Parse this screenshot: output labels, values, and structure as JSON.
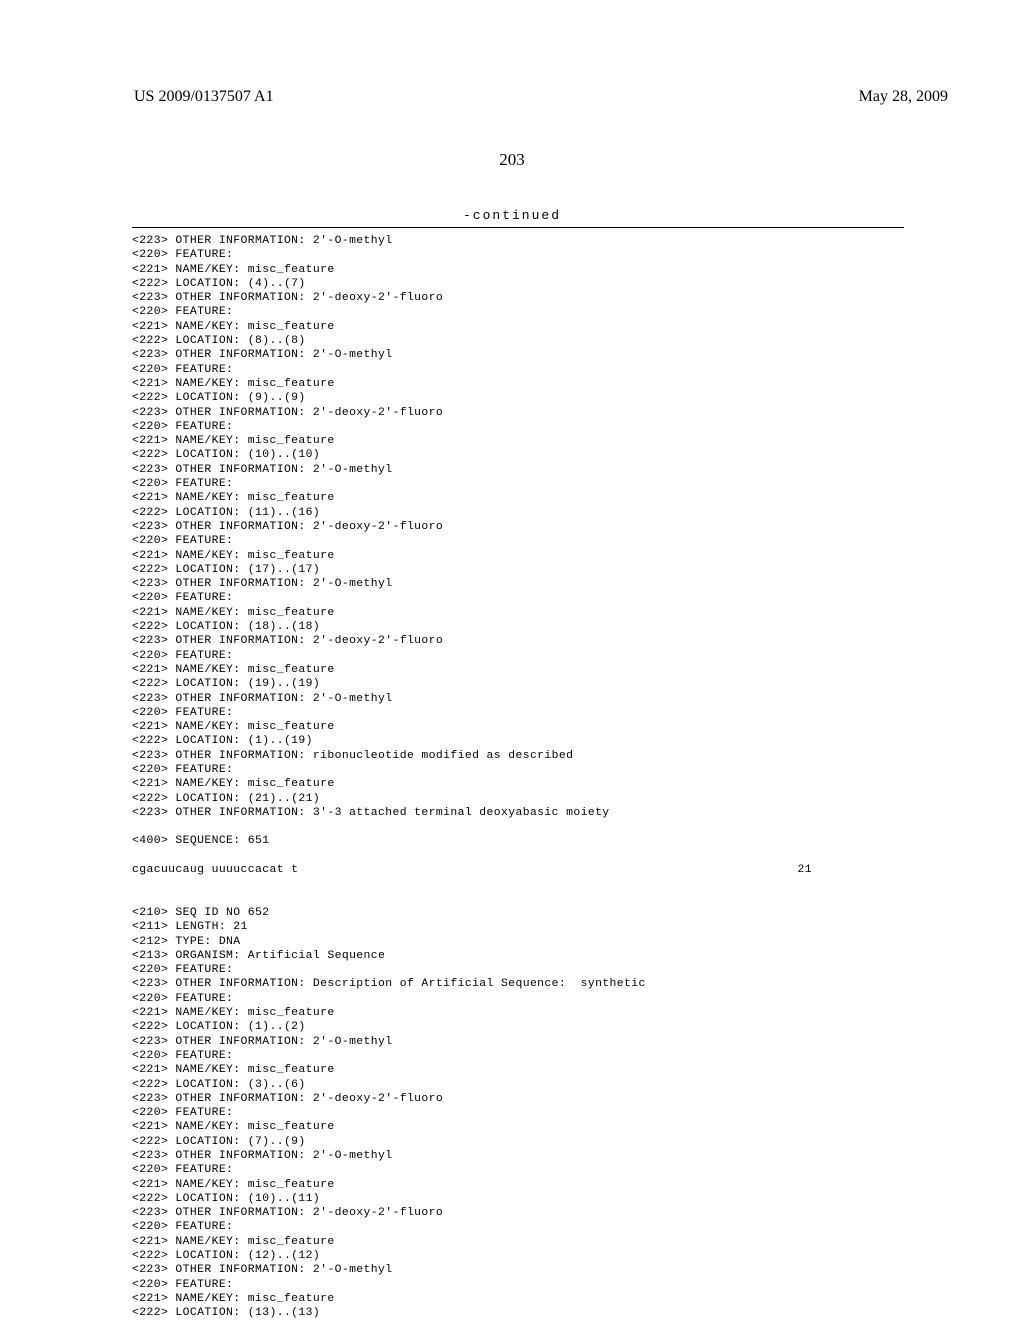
{
  "header": {
    "publication_number": "US 2009/0137507 A1",
    "publication_date": "May 28, 2009"
  },
  "page_number": "203",
  "continued_label": "-continued",
  "features_block1": [
    {
      "tag": "<223>",
      "text": "OTHER INFORMATION: 2'-O-methyl"
    },
    {
      "tag": "<220>",
      "text": "FEATURE:"
    },
    {
      "tag": "<221>",
      "text": "NAME/KEY: misc_feature"
    },
    {
      "tag": "<222>",
      "text": "LOCATION: (4)..(7)"
    },
    {
      "tag": "<223>",
      "text": "OTHER INFORMATION: 2'-deoxy-2'-fluoro"
    },
    {
      "tag": "<220>",
      "text": "FEATURE:"
    },
    {
      "tag": "<221>",
      "text": "NAME/KEY: misc_feature"
    },
    {
      "tag": "<222>",
      "text": "LOCATION: (8)..(8)"
    },
    {
      "tag": "<223>",
      "text": "OTHER INFORMATION: 2'-O-methyl"
    },
    {
      "tag": "<220>",
      "text": "FEATURE:"
    },
    {
      "tag": "<221>",
      "text": "NAME/KEY: misc_feature"
    },
    {
      "tag": "<222>",
      "text": "LOCATION: (9)..(9)"
    },
    {
      "tag": "<223>",
      "text": "OTHER INFORMATION: 2'-deoxy-2'-fluoro"
    },
    {
      "tag": "<220>",
      "text": "FEATURE:"
    },
    {
      "tag": "<221>",
      "text": "NAME/KEY: misc_feature"
    },
    {
      "tag": "<222>",
      "text": "LOCATION: (10)..(10)"
    },
    {
      "tag": "<223>",
      "text": "OTHER INFORMATION: 2'-O-methyl"
    },
    {
      "tag": "<220>",
      "text": "FEATURE:"
    },
    {
      "tag": "<221>",
      "text": "NAME/KEY: misc_feature"
    },
    {
      "tag": "<222>",
      "text": "LOCATION: (11)..(16)"
    },
    {
      "tag": "<223>",
      "text": "OTHER INFORMATION: 2'-deoxy-2'-fluoro"
    },
    {
      "tag": "<220>",
      "text": "FEATURE:"
    },
    {
      "tag": "<221>",
      "text": "NAME/KEY: misc_feature"
    },
    {
      "tag": "<222>",
      "text": "LOCATION: (17)..(17)"
    },
    {
      "tag": "<223>",
      "text": "OTHER INFORMATION: 2'-O-methyl"
    },
    {
      "tag": "<220>",
      "text": "FEATURE:"
    },
    {
      "tag": "<221>",
      "text": "NAME/KEY: misc_feature"
    },
    {
      "tag": "<222>",
      "text": "LOCATION: (18)..(18)"
    },
    {
      "tag": "<223>",
      "text": "OTHER INFORMATION: 2'-deoxy-2'-fluoro"
    },
    {
      "tag": "<220>",
      "text": "FEATURE:"
    },
    {
      "tag": "<221>",
      "text": "NAME/KEY: misc_feature"
    },
    {
      "tag": "<222>",
      "text": "LOCATION: (19)..(19)"
    },
    {
      "tag": "<223>",
      "text": "OTHER INFORMATION: 2'-O-methyl"
    },
    {
      "tag": "<220>",
      "text": "FEATURE:"
    },
    {
      "tag": "<221>",
      "text": "NAME/KEY: misc_feature"
    },
    {
      "tag": "<222>",
      "text": "LOCATION: (1)..(19)"
    },
    {
      "tag": "<223>",
      "text": "OTHER INFORMATION: ribonucleotide modified as described"
    },
    {
      "tag": "<220>",
      "text": "FEATURE:"
    },
    {
      "tag": "<221>",
      "text": "NAME/KEY: misc_feature"
    },
    {
      "tag": "<222>",
      "text": "LOCATION: (21)..(21)"
    },
    {
      "tag": "<223>",
      "text": "OTHER INFORMATION: 3'-3 attached terminal deoxyabasic moiety"
    }
  ],
  "seq400_1": {
    "tag": "<400>",
    "text": "SEQUENCE: 651"
  },
  "sequence_1": {
    "seq": "cgacuucaug uuuuccacat t",
    "length": "21"
  },
  "features_block2": [
    {
      "tag": "<210>",
      "text": "SEQ ID NO 652"
    },
    {
      "tag": "<211>",
      "text": "LENGTH: 21"
    },
    {
      "tag": "<212>",
      "text": "TYPE: DNA"
    },
    {
      "tag": "<213>",
      "text": "ORGANISM: Artificial Sequence"
    },
    {
      "tag": "<220>",
      "text": "FEATURE:"
    },
    {
      "tag": "<223>",
      "text": "OTHER INFORMATION: Description of Artificial Sequence:  synthetic"
    },
    {
      "tag": "<220>",
      "text": "FEATURE:"
    },
    {
      "tag": "<221>",
      "text": "NAME/KEY: misc_feature"
    },
    {
      "tag": "<222>",
      "text": "LOCATION: (1)..(2)"
    },
    {
      "tag": "<223>",
      "text": "OTHER INFORMATION: 2'-O-methyl"
    },
    {
      "tag": "<220>",
      "text": "FEATURE:"
    },
    {
      "tag": "<221>",
      "text": "NAME/KEY: misc_feature"
    },
    {
      "tag": "<222>",
      "text": "LOCATION: (3)..(6)"
    },
    {
      "tag": "<223>",
      "text": "OTHER INFORMATION: 2'-deoxy-2'-fluoro"
    },
    {
      "tag": "<220>",
      "text": "FEATURE:"
    },
    {
      "tag": "<221>",
      "text": "NAME/KEY: misc_feature"
    },
    {
      "tag": "<222>",
      "text": "LOCATION: (7)..(9)"
    },
    {
      "tag": "<223>",
      "text": "OTHER INFORMATION: 2'-O-methyl"
    },
    {
      "tag": "<220>",
      "text": "FEATURE:"
    },
    {
      "tag": "<221>",
      "text": "NAME/KEY: misc_feature"
    },
    {
      "tag": "<222>",
      "text": "LOCATION: (10)..(11)"
    },
    {
      "tag": "<223>",
      "text": "OTHER INFORMATION: 2'-deoxy-2'-fluoro"
    },
    {
      "tag": "<220>",
      "text": "FEATURE:"
    },
    {
      "tag": "<221>",
      "text": "NAME/KEY: misc_feature"
    },
    {
      "tag": "<222>",
      "text": "LOCATION: (12)..(12)"
    },
    {
      "tag": "<223>",
      "text": "OTHER INFORMATION: 2'-O-methyl"
    },
    {
      "tag": "<220>",
      "text": "FEATURE:"
    },
    {
      "tag": "<221>",
      "text": "NAME/KEY: misc_feature"
    },
    {
      "tag": "<222>",
      "text": "LOCATION: (13)..(13)"
    }
  ]
}
